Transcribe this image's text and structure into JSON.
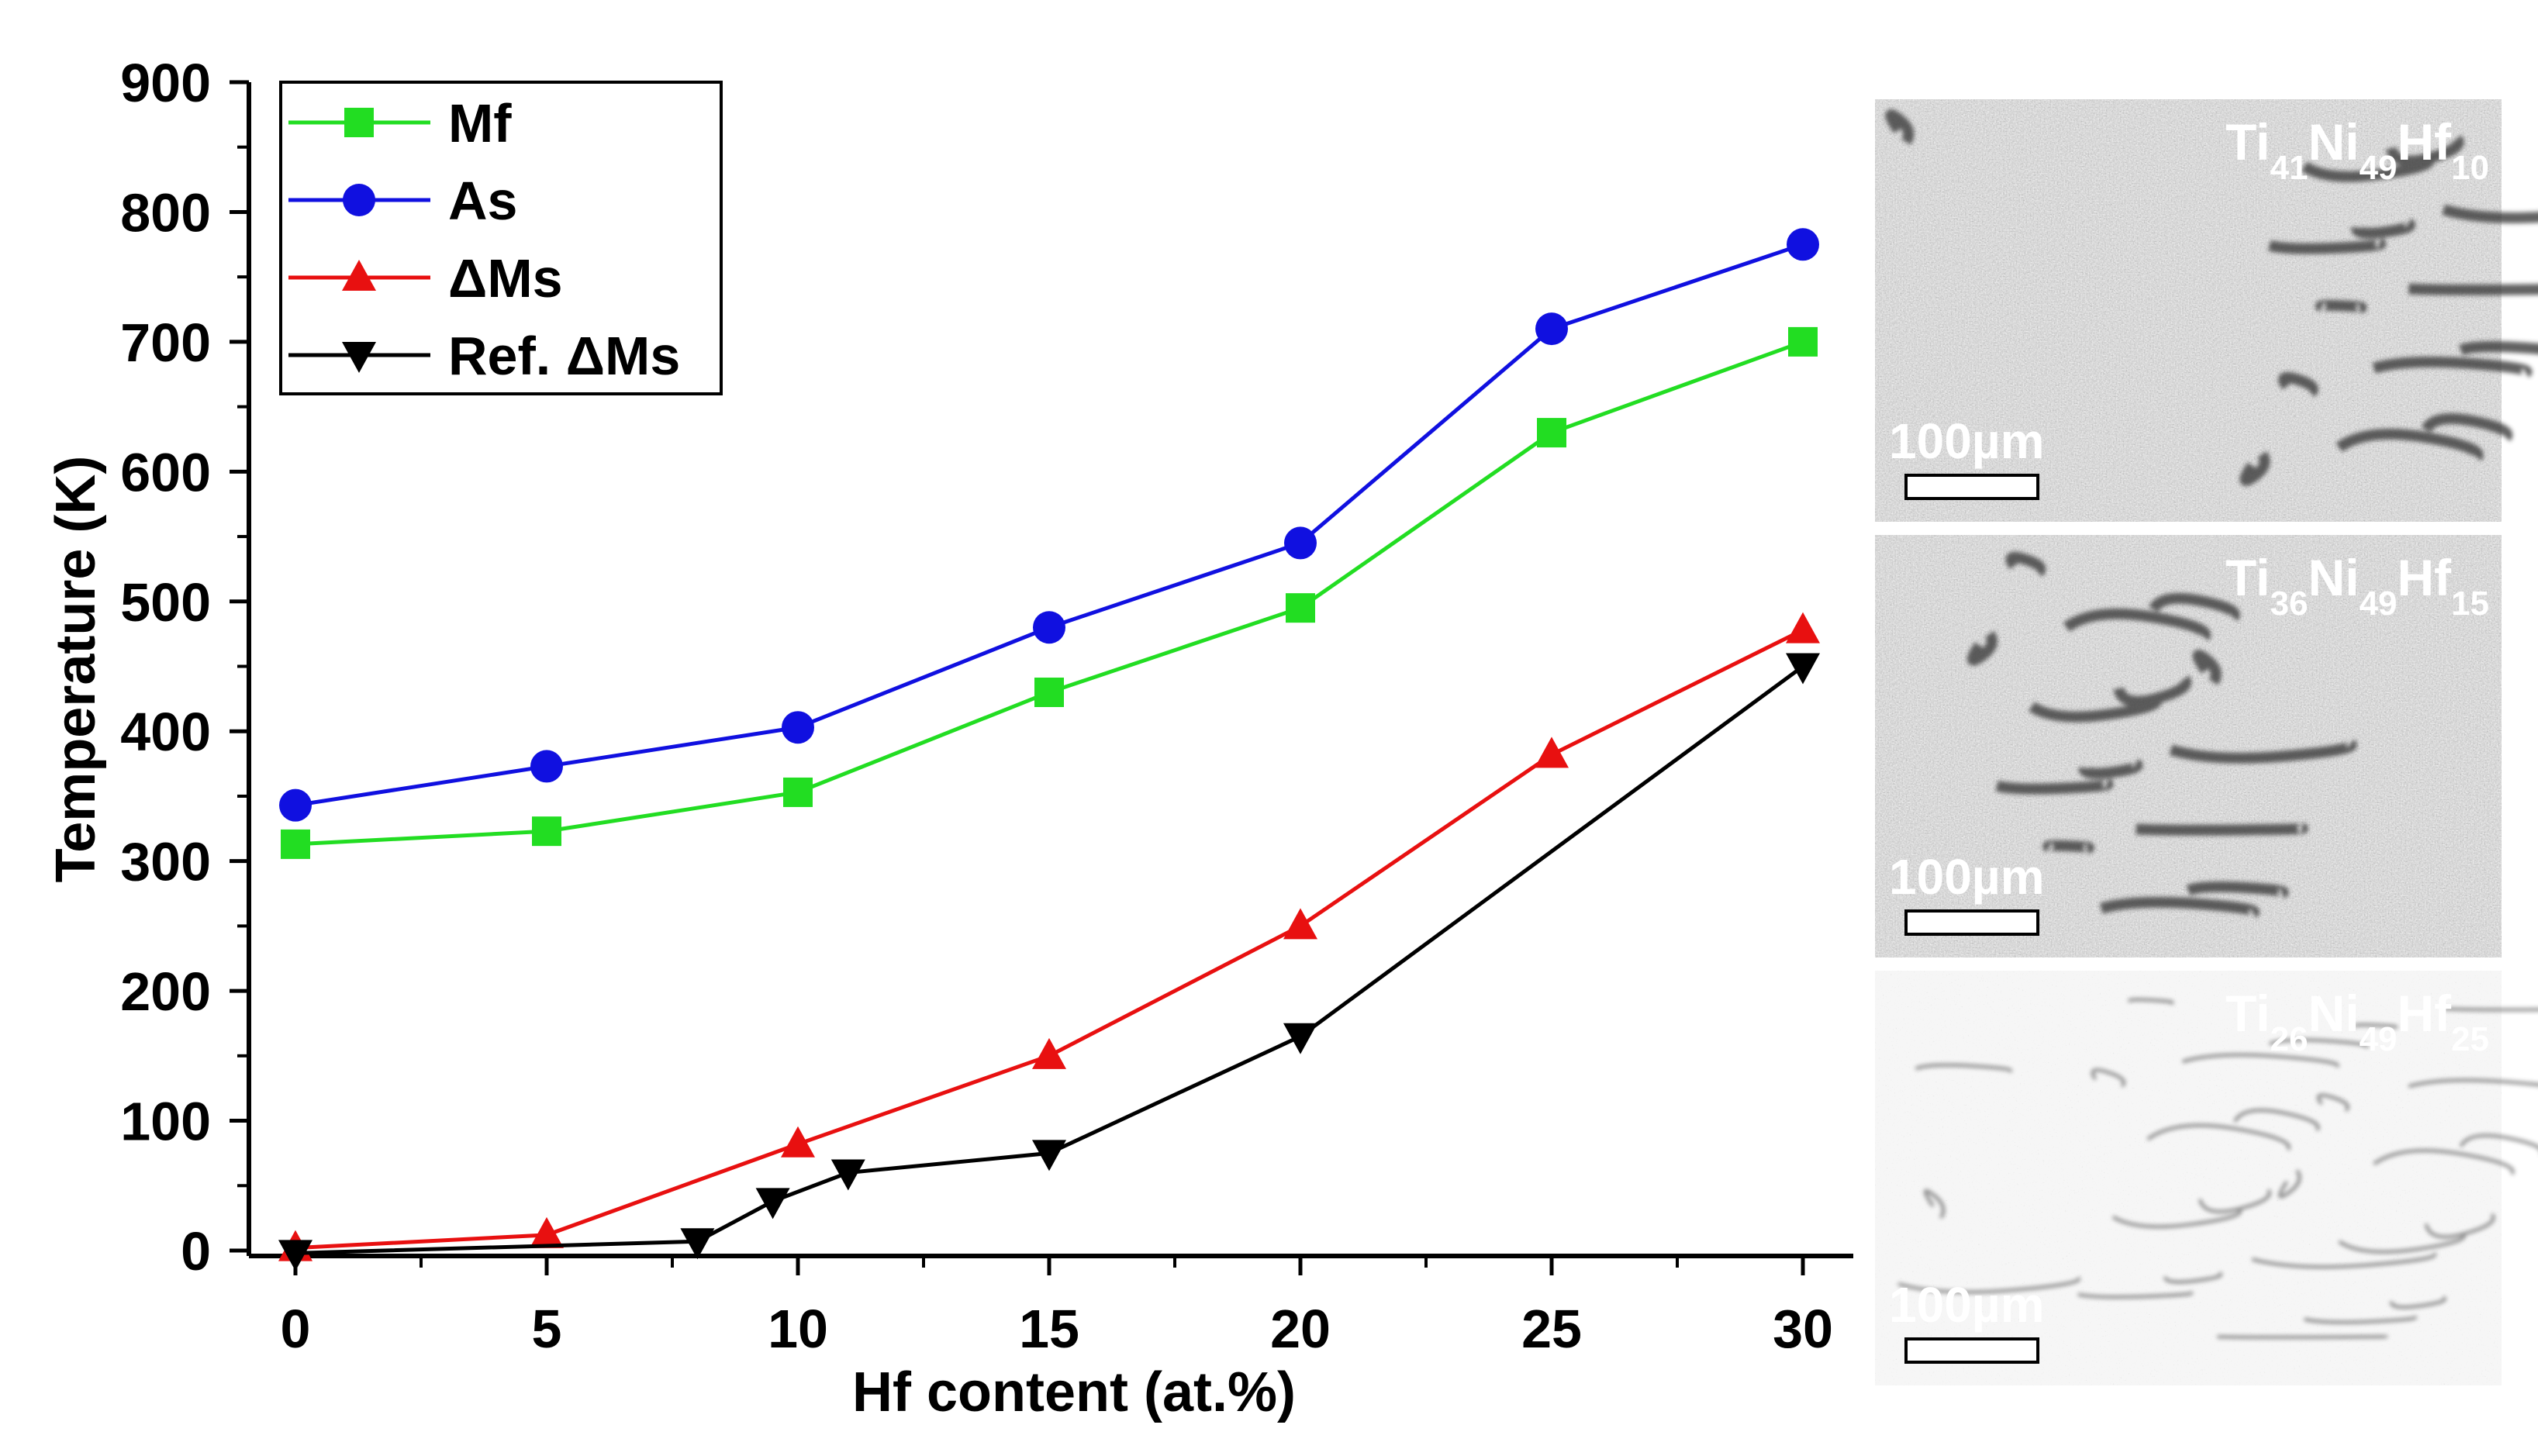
{
  "chart_data": {
    "type": "line",
    "xlabel": "Hf content (at.%)",
    "ylabel": "Temperature (K)",
    "xlim": [
      -1.5,
      31
    ],
    "ylim": [
      -10,
      900
    ],
    "xticks": [
      0,
      5,
      10,
      15,
      20,
      25,
      30
    ],
    "yticks": [
      0,
      100,
      200,
      300,
      400,
      500,
      600,
      700,
      800,
      900
    ],
    "xtick_labels": [
      "0",
      "5",
      "10",
      "15",
      "20",
      "25",
      "30"
    ],
    "ytick_labels": [
      "0",
      "100",
      "200",
      "300",
      "400",
      "500",
      "600",
      "700",
      "800",
      "900"
    ],
    "grid": false,
    "legend_position": "top-left",
    "series": [
      {
        "name": "Mf",
        "color": "#22dd22",
        "marker": "square",
        "x": [
          0,
          5,
          10,
          15,
          20,
          25,
          30
        ],
        "y": [
          313,
          323,
          353,
          430,
          495,
          630,
          700
        ]
      },
      {
        "name": "As",
        "color": "#1010e0",
        "marker": "circle",
        "x": [
          0,
          5,
          10,
          15,
          20,
          25,
          30
        ],
        "y": [
          343,
          373,
          403,
          480,
          545,
          710,
          775
        ]
      },
      {
        "name": "ΔMs",
        "color": "#e81010",
        "marker": "triangle-up",
        "x": [
          0,
          5,
          10,
          15,
          20,
          25,
          30
        ],
        "y": [
          2,
          12,
          82,
          150,
          250,
          382,
          478
        ]
      },
      {
        "name": "Ref. ΔMs",
        "color": "#000000",
        "marker": "triangle-down",
        "x": [
          0,
          8,
          9.5,
          11,
          15,
          20,
          30
        ],
        "y": [
          -2,
          7,
          38,
          60,
          75,
          165,
          450
        ]
      }
    ]
  },
  "micrographs": [
    {
      "label_parts": [
        [
          "Ti",
          ""
        ],
        [
          "41",
          "sub"
        ],
        [
          "Ni",
          ""
        ],
        [
          "49",
          "sub"
        ],
        [
          "Hf",
          ""
        ],
        [
          "10",
          "sub"
        ]
      ],
      "scale_bar": "100µm",
      "tone": "dark"
    },
    {
      "label_parts": [
        [
          "Ti",
          ""
        ],
        [
          "36",
          "sub"
        ],
        [
          "Ni",
          ""
        ],
        [
          "49",
          "sub"
        ],
        [
          "Hf",
          ""
        ],
        [
          "15",
          "sub"
        ]
      ],
      "scale_bar": "100µm",
      "tone": "dark"
    },
    {
      "label_parts": [
        [
          "Ti",
          ""
        ],
        [
          "26",
          "sub"
        ],
        [
          "Ni",
          ""
        ],
        [
          "49",
          "sub"
        ],
        [
          "Hf",
          ""
        ],
        [
          "25",
          "sub"
        ]
      ],
      "scale_bar": "100µm",
      "tone": "light"
    }
  ]
}
